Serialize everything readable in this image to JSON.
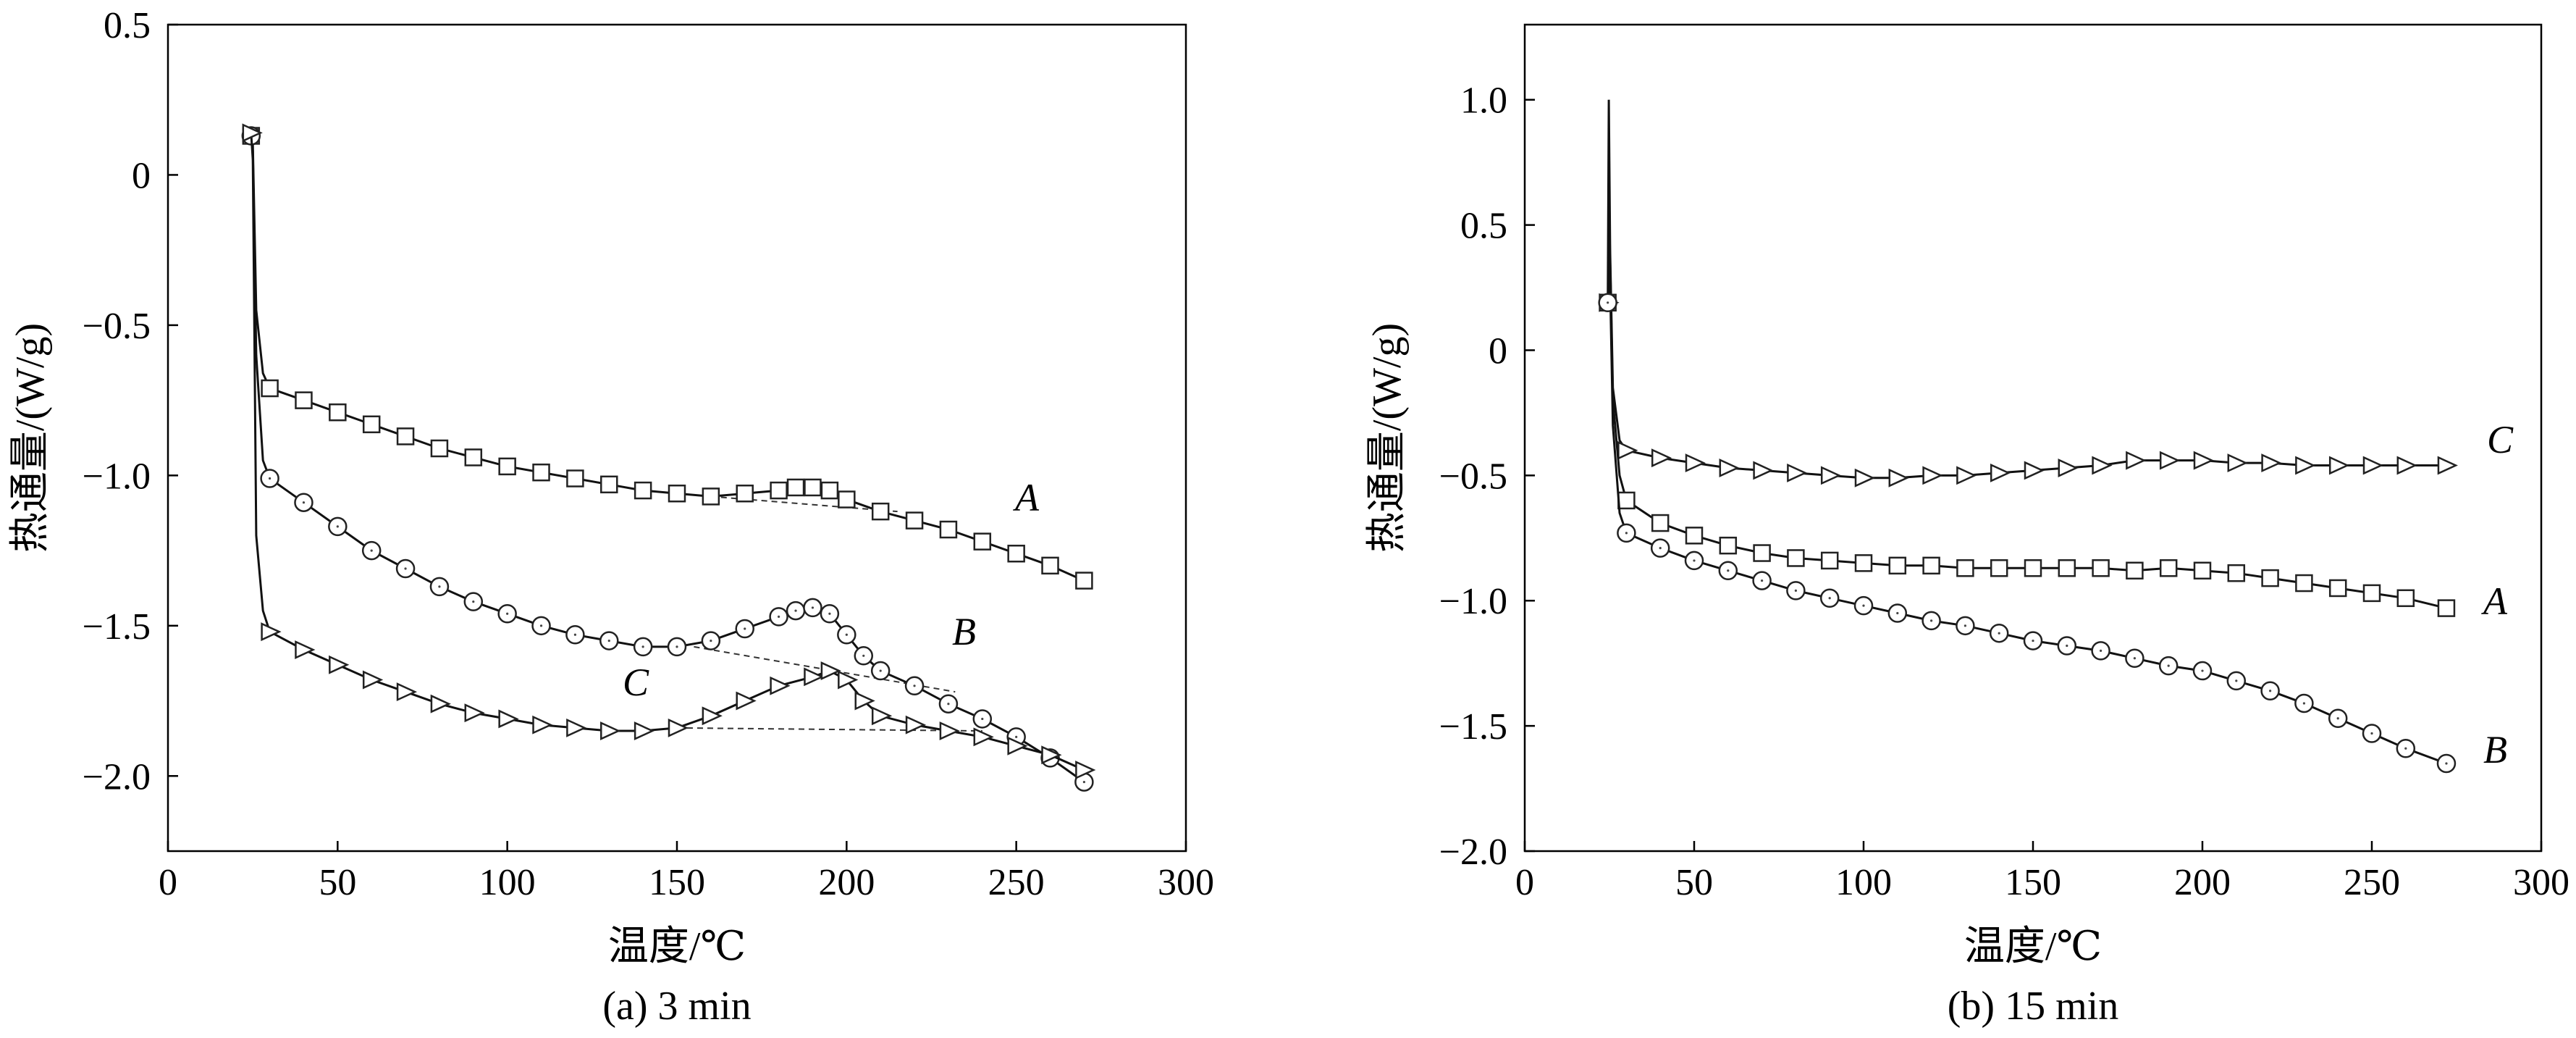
{
  "chart_data": [
    {
      "type": "line",
      "caption": "(a) 3 min",
      "xlabel": "温度/℃",
      "ylabel": "热通量/(W/g)",
      "xlim": [
        0,
        300
      ],
      "ylim": [
        -2.25,
        0.5
      ],
      "xticks": [
        0,
        50,
        100,
        150,
        200,
        250,
        300
      ],
      "xtick_labels": [
        "0",
        "50",
        "100",
        "150",
        "200",
        "250",
        "300"
      ],
      "yticks": [
        0.5,
        0,
        -0.5,
        -1.0,
        -1.5,
        -2.0
      ],
      "ytick_labels": [
        "0.5",
        "0",
        "−0.5",
        "−1.0",
        "−1.5",
        "−2.0"
      ],
      "series": [
        {
          "name": "A",
          "marker": "square",
          "x": [
            24.5,
            25,
            26,
            28,
            30,
            40,
            50,
            60,
            70,
            80,
            90,
            100,
            110,
            120,
            130,
            140,
            150,
            160,
            170,
            180,
            185,
            190,
            195,
            200,
            210,
            220,
            230,
            240,
            250,
            260,
            270
          ],
          "y": [
            0.13,
            0.1,
            -0.45,
            -0.66,
            -0.71,
            -0.75,
            -0.79,
            -0.83,
            -0.87,
            -0.91,
            -0.94,
            -0.97,
            -0.99,
            -1.01,
            -1.03,
            -1.05,
            -1.06,
            -1.07,
            -1.06,
            -1.05,
            -1.04,
            -1.04,
            -1.05,
            -1.08,
            -1.12,
            -1.15,
            -1.18,
            -1.22,
            -1.26,
            -1.3,
            -1.35
          ],
          "baseline": [
            [
              160,
              -1.07
            ],
            [
              215,
              -1.12
            ]
          ]
        },
        {
          "name": "B",
          "marker": "circle",
          "x": [
            24.5,
            25,
            26,
            28,
            30,
            40,
            50,
            60,
            70,
            80,
            90,
            100,
            110,
            120,
            130,
            140,
            150,
            160,
            170,
            180,
            185,
            190,
            195,
            200,
            205,
            210,
            220,
            230,
            240,
            250,
            260,
            270
          ],
          "y": [
            0.13,
            0.08,
            -0.6,
            -0.95,
            -1.01,
            -1.09,
            -1.17,
            -1.25,
            -1.31,
            -1.37,
            -1.42,
            -1.46,
            -1.5,
            -1.53,
            -1.55,
            -1.57,
            -1.57,
            -1.55,
            -1.51,
            -1.47,
            -1.45,
            -1.44,
            -1.46,
            -1.53,
            -1.6,
            -1.65,
            -1.7,
            -1.76,
            -1.81,
            -1.87,
            -1.94,
            -2.02
          ],
          "baseline": [
            [
              155,
              -1.57
            ],
            [
              232,
              -1.72
            ]
          ]
        },
        {
          "name": "C",
          "marker": "triangle-right",
          "x": [
            24.5,
            25,
            26,
            28,
            30,
            40,
            50,
            60,
            70,
            80,
            90,
            100,
            110,
            120,
            130,
            140,
            150,
            160,
            170,
            180,
            190,
            195,
            200,
            205,
            210,
            220,
            230,
            240,
            250,
            260,
            270
          ],
          "y": [
            0.14,
            0.05,
            -1.2,
            -1.45,
            -1.52,
            -1.58,
            -1.63,
            -1.68,
            -1.72,
            -1.76,
            -1.79,
            -1.81,
            -1.83,
            -1.84,
            -1.85,
            -1.85,
            -1.84,
            -1.8,
            -1.75,
            -1.7,
            -1.67,
            -1.65,
            -1.68,
            -1.75,
            -1.8,
            -1.83,
            -1.85,
            -1.87,
            -1.9,
            -1.93,
            -1.98
          ],
          "baseline": [
            [
              150,
              -1.84
            ],
            [
              240,
              -1.85
            ]
          ]
        }
      ]
    },
    {
      "type": "line",
      "caption": "(b) 15 min",
      "xlabel": "温度/℃",
      "ylabel": "热通量/(W/g)",
      "xlim": [
        0,
        300
      ],
      "ylim": [
        -2.0,
        1.3
      ],
      "xticks": [
        0,
        50,
        100,
        150,
        200,
        250,
        300
      ],
      "xtick_labels": [
        "0",
        "50",
        "100",
        "150",
        "200",
        "250",
        "300"
      ],
      "yticks": [
        1.0,
        0.5,
        0,
        -0.5,
        -1.0,
        -1.5,
        -2.0
      ],
      "ytick_labels": [
        "1.0",
        "0.5",
        "0",
        "−0.5",
        "−1.0",
        "−1.5",
        "−2.0"
      ],
      "series": [
        {
          "name": "C",
          "marker": "triangle-right",
          "x": [
            24.5,
            24.8,
            25.2,
            26,
            28,
            30,
            40,
            50,
            60,
            70,
            80,
            90,
            100,
            110,
            120,
            130,
            140,
            150,
            160,
            170,
            180,
            190,
            200,
            210,
            220,
            230,
            240,
            250,
            260,
            272
          ],
          "y": [
            0.19,
            1.0,
            0.4,
            -0.15,
            -0.36,
            -0.4,
            -0.43,
            -0.45,
            -0.47,
            -0.48,
            -0.49,
            -0.5,
            -0.51,
            -0.51,
            -0.5,
            -0.5,
            -0.49,
            -0.48,
            -0.47,
            -0.46,
            -0.44,
            -0.44,
            -0.44,
            -0.45,
            -0.45,
            -0.46,
            -0.46,
            -0.46,
            -0.46,
            -0.46
          ]
        },
        {
          "name": "A",
          "marker": "square",
          "x": [
            24.5,
            25,
            26,
            28,
            30,
            40,
            50,
            60,
            70,
            80,
            90,
            100,
            110,
            120,
            130,
            140,
            150,
            160,
            170,
            180,
            190,
            200,
            210,
            220,
            230,
            240,
            250,
            260,
            272
          ],
          "y": [
            0.19,
            0.5,
            -0.2,
            -0.5,
            -0.6,
            -0.69,
            -0.74,
            -0.78,
            -0.81,
            -0.83,
            -0.84,
            -0.85,
            -0.86,
            -0.86,
            -0.87,
            -0.87,
            -0.87,
            -0.87,
            -0.87,
            -0.88,
            -0.87,
            -0.88,
            -0.89,
            -0.91,
            -0.93,
            -0.95,
            -0.97,
            -0.99,
            -1.03
          ]
        },
        {
          "name": "B",
          "marker": "circle",
          "x": [
            24.5,
            25,
            26,
            28,
            30,
            40,
            50,
            60,
            70,
            80,
            90,
            100,
            110,
            120,
            130,
            140,
            150,
            160,
            170,
            180,
            190,
            200,
            210,
            220,
            230,
            240,
            250,
            260,
            272
          ],
          "y": [
            0.19,
            0.4,
            -0.3,
            -0.65,
            -0.73,
            -0.79,
            -0.84,
            -0.88,
            -0.92,
            -0.96,
            -0.99,
            -1.02,
            -1.05,
            -1.08,
            -1.1,
            -1.13,
            -1.16,
            -1.18,
            -1.2,
            -1.23,
            -1.26,
            -1.28,
            -1.32,
            -1.36,
            -1.41,
            -1.47,
            -1.53,
            -1.59,
            -1.65
          ]
        }
      ]
    }
  ]
}
